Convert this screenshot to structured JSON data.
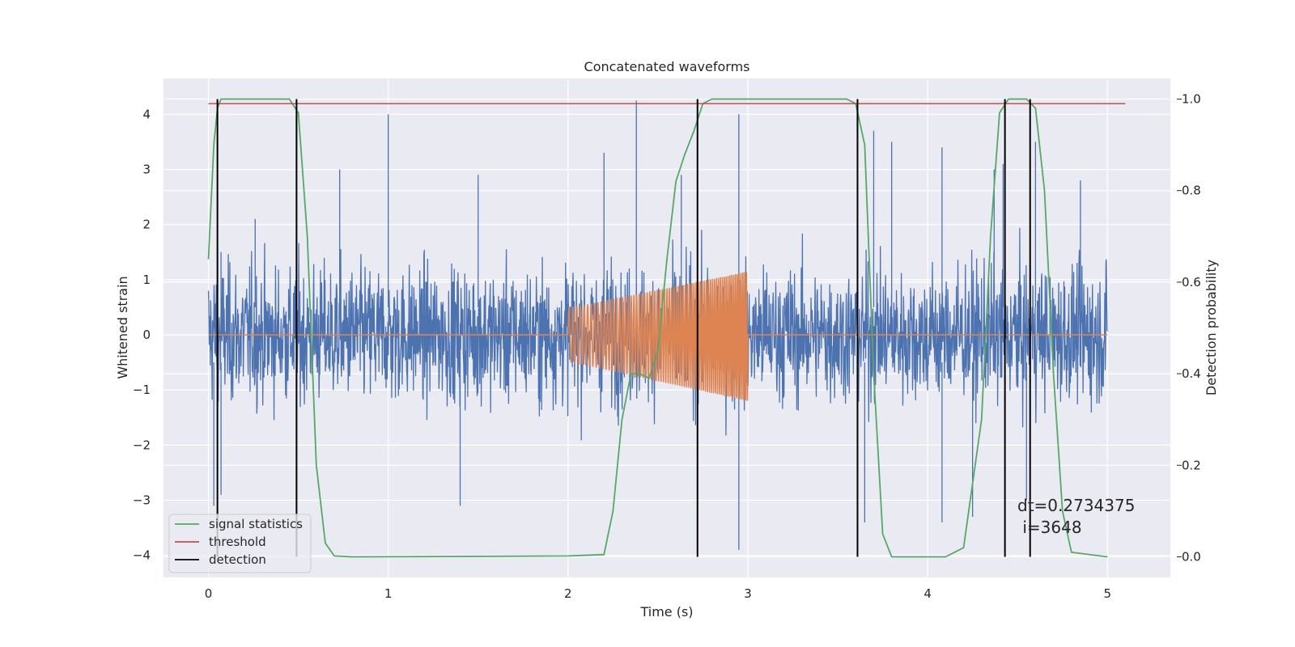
{
  "chart_data": {
    "type": "line",
    "title": "Concatenated waveforms",
    "xlabel": "Time (s)",
    "ylabel_left": "Whitened strain",
    "ylabel_right": "Detection probability",
    "xlim": [
      -0.25,
      5.35
    ],
    "ylim_left": [
      -4.4,
      4.65
    ],
    "ylim_right": [
      -0.045,
      1.045
    ],
    "xticks": [
      "0",
      "1",
      "2",
      "3",
      "4",
      "5"
    ],
    "yticks_left": [
      "−4",
      "−3",
      "−2",
      "−1",
      "0",
      "1",
      "2",
      "3",
      "4"
    ],
    "yticks_right": [
      "0.0",
      "0.2",
      "0.4",
      "0.6",
      "0.8",
      "1.0"
    ],
    "grid": true,
    "legend_position": "lower-left",
    "series": [
      {
        "name": "",
        "axis": "left",
        "color": "#4c72b0",
        "kind": "noisy strain",
        "x_range": [
          0.0,
          5.0
        ],
        "peaks": [
          {
            "x": 0.07,
            "y": 1.5
          },
          {
            "x": 0.26,
            "y": 2.1
          },
          {
            "x": 0.73,
            "y": 3.0
          },
          {
            "x": 1.0,
            "y": 4.0
          },
          {
            "x": 1.5,
            "y": 2.9
          },
          {
            "x": 2.2,
            "y": 3.3
          },
          {
            "x": 2.38,
            "y": 4.25
          },
          {
            "x": 2.63,
            "y": 2.9
          },
          {
            "x": 2.95,
            "y": 4.0
          },
          {
            "x": 3.7,
            "y": 3.7
          },
          {
            "x": 3.8,
            "y": 3.5
          },
          {
            "x": 4.08,
            "y": 3.4
          },
          {
            "x": 4.37,
            "y": 3.0
          },
          {
            "x": 4.42,
            "y": 3.1
          },
          {
            "x": 4.6,
            "y": 3.5
          },
          {
            "x": 4.85,
            "y": 2.8
          }
        ],
        "troughs": [
          {
            "x": 0.03,
            "y": -3.1
          },
          {
            "x": 0.07,
            "y": -2.9
          },
          {
            "x": 1.4,
            "y": -3.1
          },
          {
            "x": 2.95,
            "y": -3.9
          },
          {
            "x": 3.65,
            "y": -3.4
          },
          {
            "x": 4.08,
            "y": -3.4
          },
          {
            "x": 4.25,
            "y": -3.3
          },
          {
            "x": 4.55,
            "y": -3.0
          }
        ]
      },
      {
        "name": "",
        "axis": "left",
        "color": "#dd8452",
        "kind": "injected chirp",
        "baseline": 0.0,
        "chirp_x_range": [
          2.0,
          3.0
        ],
        "amp_upper_start": 0.48,
        "amp_upper_end": 1.15,
        "amp_lower_start": -0.48,
        "amp_lower_end": -1.2
      },
      {
        "name": "signal statistics",
        "axis": "right",
        "color": "#55a868",
        "x": [
          0.0,
          0.03,
          0.05,
          0.07,
          0.1,
          0.4,
          0.45,
          0.5,
          0.55,
          0.6,
          0.65,
          0.7,
          0.8,
          2.0,
          2.2,
          2.25,
          2.3,
          2.35,
          2.4,
          2.45,
          2.5,
          2.55,
          2.6,
          2.65,
          2.7,
          2.75,
          2.8,
          3.55,
          3.6,
          3.65,
          3.7,
          3.75,
          3.8,
          4.1,
          4.2,
          4.3,
          4.35,
          4.4,
          4.45,
          4.55,
          4.6,
          4.65,
          4.7,
          4.75,
          4.8,
          5.0
        ],
        "y": [
          0.65,
          0.9,
          0.98,
          1.0,
          1.0,
          1.0,
          1.0,
          0.97,
          0.7,
          0.2,
          0.03,
          0.002,
          0.0,
          0.002,
          0.005,
          0.1,
          0.3,
          0.4,
          0.4,
          0.39,
          0.45,
          0.65,
          0.82,
          0.88,
          0.93,
          0.99,
          1.0,
          1.0,
          0.99,
          0.9,
          0.4,
          0.05,
          0.0,
          0.0,
          0.02,
          0.3,
          0.7,
          0.97,
          1.0,
          1.0,
          0.98,
          0.8,
          0.4,
          0.1,
          0.01,
          0.0
        ]
      },
      {
        "name": "threshold",
        "axis": "right",
        "color": "#c44e52",
        "x": [
          0.0,
          5.1
        ],
        "y": [
          0.99,
          0.99
        ]
      },
      {
        "name": "detection",
        "axis": "right",
        "color": "#000000",
        "x": [
          0.05,
          0.49,
          2.72,
          3.61,
          4.43,
          4.57
        ],
        "y_range": [
          0.0,
          1.0
        ]
      }
    ],
    "annotation": {
      "line1": "dt=0.2734375",
      "line2": " i=3648"
    }
  }
}
